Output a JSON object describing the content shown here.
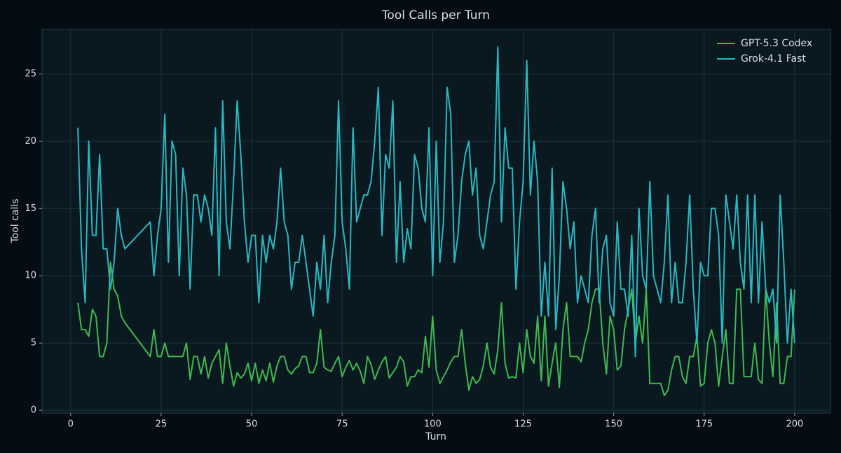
{
  "chart_data": {
    "type": "line",
    "title": "Tool Calls per Turn",
    "x_label": "Turn",
    "y_label": "Tool calls",
    "x": [
      2,
      3,
      4,
      5,
      6,
      7,
      8,
      9,
      10,
      11,
      12,
      13,
      14,
      15,
      22,
      23,
      24,
      25,
      26,
      27,
      28,
      29,
      30,
      31,
      32,
      33,
      34,
      35,
      36,
      37,
      38,
      39,
      40,
      41,
      42,
      43,
      44,
      45,
      46,
      47,
      48,
      49,
      50,
      51,
      52,
      53,
      54,
      55,
      56,
      57,
      58,
      59,
      60,
      61,
      62,
      63,
      64,
      65,
      66,
      67,
      68,
      69,
      70,
      71,
      72,
      73,
      74,
      75,
      76,
      77,
      78,
      79,
      80,
      81,
      82,
      83,
      84,
      85,
      86,
      87,
      88,
      89,
      90,
      91,
      92,
      93,
      94,
      95,
      96,
      97,
      98,
      99,
      100,
      101,
      102,
      103,
      104,
      105,
      106,
      107,
      108,
      109,
      110,
      111,
      112,
      113,
      114,
      115,
      116,
      117,
      118,
      119,
      120,
      121,
      122,
      123,
      124,
      125,
      126,
      127,
      128,
      129,
      130,
      131,
      132,
      133,
      134,
      135,
      136,
      137,
      138,
      139,
      140,
      141,
      142,
      143,
      144,
      145,
      146,
      147,
      148,
      149,
      150,
      151,
      152,
      153,
      154,
      155,
      156,
      157,
      158,
      159,
      160,
      161,
      162,
      163,
      164,
      165,
      166,
      167,
      168,
      169,
      170,
      171,
      172,
      173,
      174,
      175,
      176,
      177,
      178,
      179,
      180,
      181,
      182,
      183,
      184,
      185,
      186,
      187,
      188,
      189,
      190,
      191,
      192,
      193,
      194,
      195,
      196,
      197,
      198,
      199,
      200
    ],
    "series": [
      {
        "name": "GPT-5.3 Codex",
        "color": "#3fb950",
        "values": [
          8,
          6,
          6,
          5.5,
          7.5,
          7,
          4,
          4,
          5,
          11,
          9,
          8.5,
          7,
          6.5,
          4,
          6,
          4,
          4,
          5,
          4,
          4,
          4,
          4,
          4,
          5,
          2.3,
          4,
          4,
          2.7,
          4,
          2.4,
          3.5,
          4,
          4.5,
          2,
          5,
          3.3,
          1.8,
          2.8,
          2.4,
          2.7,
          3.5,
          2.2,
          3.5,
          2,
          3,
          2.2,
          3.5,
          2.1,
          3.3,
          4,
          4,
          3,
          2.7,
          3.1,
          3.3,
          4,
          4,
          2.8,
          2.8,
          3.5,
          6,
          3.2,
          3,
          2.9,
          3.5,
          4,
          2.5,
          3.2,
          3.7,
          3,
          3.5,
          2.9,
          2,
          4,
          3.4,
          2.3,
          3,
          3.6,
          4,
          2.4,
          2.8,
          3.2,
          4,
          3.6,
          1.8,
          2.5,
          2.5,
          3,
          2.8,
          5.5,
          3.2,
          7,
          3,
          2,
          2.5,
          3,
          3.6,
          4,
          4,
          6,
          3.5,
          1.5,
          2.5,
          2,
          2.3,
          3.3,
          5,
          3.2,
          2.7,
          4.5,
          8,
          3.5,
          2.4,
          2.5,
          2.4,
          5,
          2.8,
          6,
          4,
          3.5,
          7,
          2.2,
          7,
          1.8,
          3.5,
          5,
          1.7,
          6,
          8,
          4,
          4,
          4,
          3.6,
          5,
          6,
          8,
          9,
          9,
          5,
          2.7,
          7,
          6,
          3,
          3.3,
          6,
          7.5,
          9,
          5,
          7,
          5,
          9,
          2,
          2,
          2,
          2,
          1.1,
          1.5,
          3,
          4,
          4,
          2.5,
          2,
          4,
          4,
          5.5,
          1.8,
          2,
          5,
          6,
          5,
          1.8,
          4,
          6,
          2,
          2,
          9,
          9,
          2.5,
          2.5,
          2.5,
          5,
          2.3,
          2,
          9,
          5,
          2.5,
          8,
          2,
          2,
          4,
          4,
          9
        ]
      },
      {
        "name": "Grok-4.1 Fast",
        "color": "#2ab7c0",
        "values": [
          21,
          12,
          8,
          20,
          13,
          13,
          19,
          12,
          12,
          9,
          11,
          15,
          13,
          12,
          14,
          10,
          13,
          15,
          22,
          11,
          20,
          19,
          10,
          18,
          16,
          9,
          16,
          16,
          14,
          16,
          15,
          13,
          21,
          10,
          23,
          14,
          12,
          17,
          23,
          19,
          14,
          11,
          13,
          13,
          8,
          13,
          11,
          13,
          12,
          14,
          18,
          14,
          13,
          9,
          11,
          11,
          13,
          11,
          9,
          7,
          11,
          9,
          13,
          8,
          11,
          13,
          23,
          14,
          12,
          9,
          21,
          14,
          15,
          16,
          16,
          17,
          20,
          24,
          13,
          19,
          18,
          23,
          11,
          17,
          11,
          13.5,
          12,
          19,
          18,
          15,
          14,
          21,
          10,
          20,
          11,
          14,
          24,
          22,
          11,
          13,
          17,
          19,
          20,
          16,
          18,
          13,
          12,
          14,
          16,
          17,
          27,
          14,
          21,
          18,
          18,
          9,
          14,
          17,
          26,
          16,
          20,
          17,
          7,
          11,
          7,
          18,
          6,
          10,
          17,
          15,
          12,
          14,
          8,
          10,
          9,
          8,
          13,
          15,
          8,
          12,
          13,
          8,
          7,
          14,
          9,
          9,
          7,
          13,
          4,
          15,
          10,
          9,
          17,
          10,
          9,
          8,
          11,
          16,
          8,
          11,
          8,
          8,
          11,
          16,
          9,
          5,
          11,
          10,
          10,
          15,
          15,
          13,
          5,
          16,
          14,
          12,
          16,
          11,
          9,
          16,
          8,
          16,
          8,
          14,
          9,
          8,
          9,
          5,
          16,
          11,
          5,
          9,
          5
        ]
      }
    ],
    "xlim": [
      -7.9,
      209.9
    ],
    "ylim": [
      -0.2,
      28.3
    ],
    "xticks": [
      0,
      25,
      50,
      75,
      100,
      125,
      150,
      175,
      200
    ],
    "yticks": [
      0,
      5,
      10,
      15,
      20,
      25
    ],
    "grid": true,
    "legend": "upper right"
  }
}
